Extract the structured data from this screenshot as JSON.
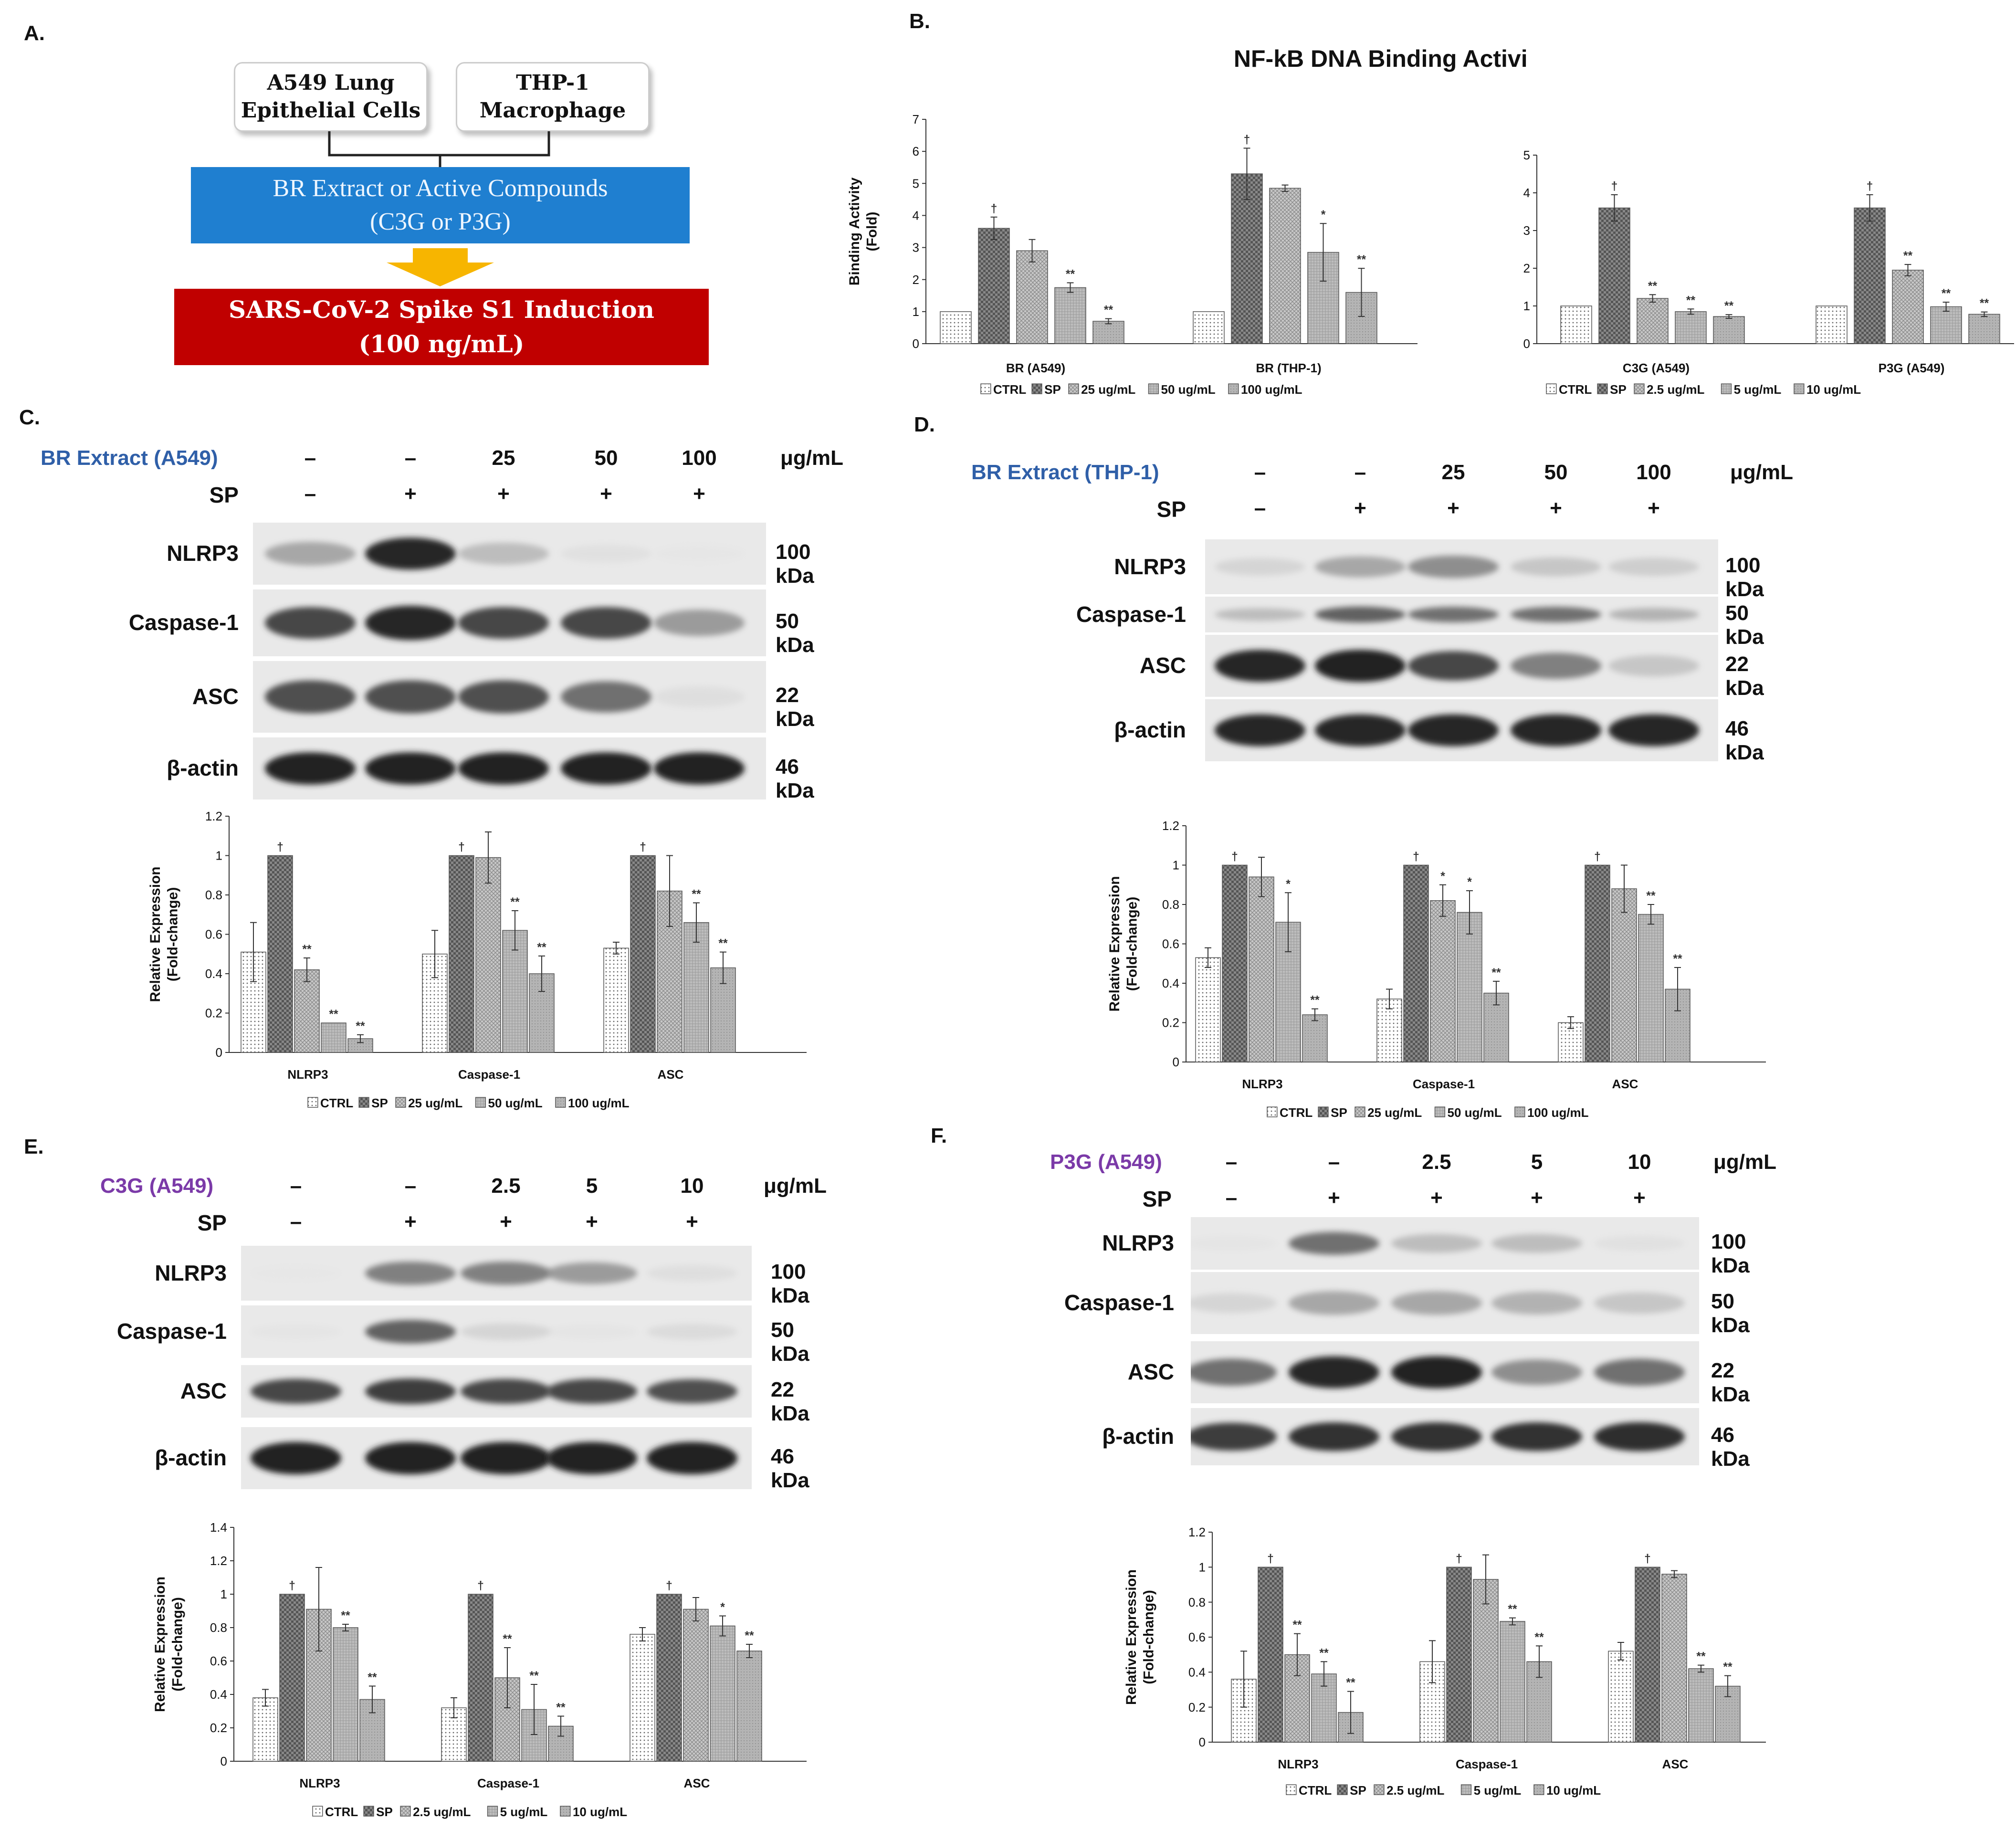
{
  "panel_labels": {
    "a": "A.",
    "b": "B.",
    "c": "C.",
    "d": "D.",
    "e": "E.",
    "f": "F."
  },
  "schematic": {
    "cell_a549": "A549 Lung\nEpithelial Cells",
    "cell_thp1": "THP-1\nMacrophage",
    "treatment": "BR Extract or Active Compounds\n(C3G or P3G)",
    "induction": "SARS-CoV-2 Spike S1 Induction\n(100 ng/mL)"
  },
  "colors": {
    "blue": "#1f7fd0",
    "red": "#c00000",
    "arrow": "#f7b500",
    "label_blue": "#2f5fa8",
    "label_purple": "#7b3aa8"
  },
  "chart_data": [
    {
      "id": "B1",
      "type": "bar",
      "title": "NF-kB DNA Binding Activity",
      "ylabel": "Binding Activity (Fold)",
      "ylim": [
        0,
        7
      ],
      "yticks": [
        "0",
        "1",
        "2",
        "3",
        "4",
        "5",
        "6",
        "7"
      ],
      "categories": [
        "BR (A549)",
        "BR (THP-1)"
      ],
      "series": [
        {
          "name": "CTRL",
          "values": [
            1,
            1
          ],
          "errors": [
            0,
            0
          ],
          "marks": [
            "",
            ""
          ]
        },
        {
          "name": "SP",
          "values": [
            3.6,
            5.3
          ],
          "errors": [
            0.35,
            0.8
          ],
          "marks": [
            "†",
            "†"
          ]
        },
        {
          "name": "25 ug/mL",
          "values": [
            2.9,
            4.85
          ],
          "errors": [
            0.35,
            0.1
          ],
          "marks": [
            "",
            ""
          ]
        },
        {
          "name": "50 ug/mL",
          "values": [
            1.75,
            2.85
          ],
          "errors": [
            0.15,
            0.9
          ],
          "marks": [
            "**",
            "*"
          ]
        },
        {
          "name": "100 ug/mL",
          "values": [
            0.7,
            1.6
          ],
          "errors": [
            0.08,
            0.75
          ],
          "marks": [
            "**",
            "**"
          ]
        }
      ],
      "legend": [
        "CTRL",
        "SP",
        "25 ug/mL",
        "50 ug/mL",
        "100 ug/mL"
      ]
    },
    {
      "id": "B2",
      "type": "bar",
      "title": "",
      "ylabel": "",
      "ylim": [
        0,
        5
      ],
      "yticks": [
        "0",
        "1",
        "2",
        "3",
        "4",
        "5"
      ],
      "categories": [
        "C3G (A549)",
        "P3G (A549)"
      ],
      "series": [
        {
          "name": "CTRL",
          "values": [
            1,
            1
          ],
          "errors": [
            0,
            0
          ],
          "marks": [
            "",
            ""
          ]
        },
        {
          "name": "SP",
          "values": [
            3.6,
            3.6
          ],
          "errors": [
            0.35,
            0.35
          ],
          "marks": [
            "†",
            "†"
          ]
        },
        {
          "name": "2.5 ug/mL",
          "values": [
            1.2,
            1.95
          ],
          "errors": [
            0.1,
            0.15
          ],
          "marks": [
            "**",
            "**"
          ]
        },
        {
          "name": "5 ug/mL",
          "values": [
            0.85,
            0.98
          ],
          "errors": [
            0.07,
            0.12
          ],
          "marks": [
            "**",
            "**"
          ]
        },
        {
          "name": "10 ug/mL",
          "values": [
            0.72,
            0.78
          ],
          "errors": [
            0.05,
            0.06
          ],
          "marks": [
            "**",
            "**"
          ]
        }
      ],
      "legend": [
        "CTRL",
        "SP",
        "2.5 ug/mL",
        "5 ug/mL",
        "10 ug/mL"
      ]
    },
    {
      "id": "C",
      "type": "bar",
      "title": "",
      "ylabel": "Relative Expression (Fold-change)",
      "ylim": [
        0,
        1.2
      ],
      "yticks": [
        "0",
        "0.2",
        "0.4",
        "0.6",
        "0.8",
        "1",
        "1.2"
      ],
      "categories": [
        "NLRP3",
        "Caspase-1",
        "ASC"
      ],
      "series": [
        {
          "name": "CTRL",
          "values": [
            0.51,
            0.5,
            0.53
          ],
          "errors": [
            0.15,
            0.12,
            0.03
          ],
          "marks": [
            "",
            "",
            ""
          ]
        },
        {
          "name": "SP",
          "values": [
            1,
            1,
            1
          ],
          "errors": [
            0,
            0,
            0
          ],
          "marks": [
            "†",
            "†",
            "†"
          ]
        },
        {
          "name": "25 ug/mL",
          "values": [
            0.42,
            0.99,
            0.82
          ],
          "errors": [
            0.06,
            0.13,
            0.18
          ],
          "marks": [
            "**",
            "",
            ""
          ]
        },
        {
          "name": "50 ug/mL",
          "values": [
            0.15,
            0.62,
            0.66
          ],
          "errors": [
            0,
            0.1,
            0.1
          ],
          "marks": [
            "**",
            "**",
            "**"
          ]
        },
        {
          "name": "100 ug/mL",
          "values": [
            0.07,
            0.4,
            0.43
          ],
          "errors": [
            0.02,
            0.09,
            0.08
          ],
          "marks": [
            "**",
            "**",
            "**"
          ]
        }
      ],
      "legend": [
        "CTRL",
        "SP",
        "25 ug/mL",
        "50 ug/mL",
        "100 ug/mL"
      ]
    },
    {
      "id": "D",
      "type": "bar",
      "title": "",
      "ylabel": "Relative Expression (Fold-change)",
      "ylim": [
        0,
        1.2
      ],
      "yticks": [
        "0",
        "0.2",
        "0.4",
        "0.6",
        "0.8",
        "1",
        "1.2"
      ],
      "categories": [
        "NLRP3",
        "Caspase-1",
        "ASC"
      ],
      "series": [
        {
          "name": "CTRL",
          "values": [
            0.53,
            0.32,
            0.2
          ],
          "errors": [
            0.05,
            0.05,
            0.03
          ],
          "marks": [
            "",
            "",
            ""
          ]
        },
        {
          "name": "SP",
          "values": [
            1,
            1,
            1
          ],
          "errors": [
            0,
            0,
            0
          ],
          "marks": [
            "†",
            "†",
            "†"
          ]
        },
        {
          "name": "25 ug/mL",
          "values": [
            0.94,
            0.82,
            0.88
          ],
          "errors": [
            0.1,
            0.08,
            0.12
          ],
          "marks": [
            "",
            "*",
            ""
          ]
        },
        {
          "name": "50 ug/mL",
          "values": [
            0.71,
            0.76,
            0.75
          ],
          "errors": [
            0.15,
            0.11,
            0.05
          ],
          "marks": [
            "*",
            "*",
            "**"
          ]
        },
        {
          "name": "100 ug/mL",
          "values": [
            0.24,
            0.35,
            0.37
          ],
          "errors": [
            0.03,
            0.06,
            0.11
          ],
          "marks": [
            "**",
            "**",
            "**"
          ]
        }
      ],
      "legend": [
        "CTRL",
        "SP",
        "25 ug/mL",
        "50 ug/mL",
        "100 ug/mL"
      ]
    },
    {
      "id": "E",
      "type": "bar",
      "title": "",
      "ylabel": "Relative Expression (Fold-change)",
      "ylim": [
        0,
        1.4
      ],
      "yticks": [
        "0",
        "0.2",
        "0.4",
        "0.6",
        "0.8",
        "1",
        "1.2",
        "1.4"
      ],
      "categories": [
        "NLRP3",
        "Caspase-1",
        "ASC"
      ],
      "series": [
        {
          "name": "CTRL",
          "values": [
            0.38,
            0.32,
            0.76
          ],
          "errors": [
            0.05,
            0.06,
            0.04
          ],
          "marks": [
            "",
            "",
            ""
          ]
        },
        {
          "name": "SP",
          "values": [
            1,
            1,
            1
          ],
          "errors": [
            0,
            0,
            0
          ],
          "marks": [
            "†",
            "†",
            "†"
          ]
        },
        {
          "name": "2.5 ug/mL",
          "values": [
            0.91,
            0.5,
            0.91
          ],
          "errors": [
            0.25,
            0.18,
            0.07
          ],
          "marks": [
            "",
            "**",
            ""
          ]
        },
        {
          "name": "5 ug/mL",
          "values": [
            0.8,
            0.31,
            0.81
          ],
          "errors": [
            0.02,
            0.15,
            0.06
          ],
          "marks": [
            "**",
            "**",
            "*"
          ]
        },
        {
          "name": "10 ug/mL",
          "values": [
            0.37,
            0.21,
            0.66
          ],
          "errors": [
            0.08,
            0.06,
            0.04
          ],
          "marks": [
            "**",
            "**",
            "**"
          ]
        }
      ],
      "legend": [
        "CTRL",
        "SP",
        "2.5 ug/mL",
        "5 ug/mL",
        "10 ug/mL"
      ]
    },
    {
      "id": "F",
      "type": "bar",
      "title": "",
      "ylabel": "Relative Expression (Fold-change)",
      "ylim": [
        0,
        1.2
      ],
      "yticks": [
        "0",
        "0.2",
        "0.4",
        "0.6",
        "0.8",
        "1",
        "1.2"
      ],
      "categories": [
        "NLRP3",
        "Caspase-1",
        "ASC"
      ],
      "series": [
        {
          "name": "CTRL",
          "values": [
            0.36,
            0.46,
            0.52
          ],
          "errors": [
            0.16,
            0.12,
            0.05
          ],
          "marks": [
            "",
            "",
            ""
          ]
        },
        {
          "name": "SP",
          "values": [
            1,
            1,
            1
          ],
          "errors": [
            0,
            0,
            0
          ],
          "marks": [
            "†",
            "†",
            "†"
          ]
        },
        {
          "name": "2.5 ug/mL",
          "values": [
            0.5,
            0.93,
            0.96
          ],
          "errors": [
            0.12,
            0.14,
            0.02
          ],
          "marks": [
            "**",
            "",
            ""
          ]
        },
        {
          "name": "5 ug/mL",
          "values": [
            0.39,
            0.69,
            0.42
          ],
          "errors": [
            0.07,
            0.02,
            0.02
          ],
          "marks": [
            "**",
            "**",
            "**"
          ]
        },
        {
          "name": "10 ug/mL",
          "values": [
            0.17,
            0.46,
            0.32
          ],
          "errors": [
            0.12,
            0.09,
            0.06
          ],
          "marks": [
            "**",
            "**",
            "**"
          ]
        }
      ],
      "legend": [
        "CTRL",
        "SP",
        "2.5 ug/mL",
        "5 ug/mL",
        "10 ug/mL"
      ]
    }
  ],
  "blots": {
    "C": {
      "treatment": "BR Extract (A549)",
      "doses": [
        "–",
        "–",
        "25",
        "50",
        "100"
      ],
      "unit": "μg/mL",
      "sp_label": "SP",
      "sp": [
        "–",
        "+",
        "+",
        "+",
        "+"
      ],
      "rows": [
        {
          "label": "NLRP3",
          "kda": "100 kDa",
          "intensity": [
            0.45,
            0.95,
            0.35,
            0.1,
            0.03
          ]
        },
        {
          "label": "Caspase-1",
          "kda": "50 kDa",
          "intensity": [
            0.8,
            0.95,
            0.8,
            0.8,
            0.5
          ]
        },
        {
          "label": "ASC",
          "kda": "22 kDa",
          "intensity": [
            0.75,
            0.75,
            0.75,
            0.65,
            0.12
          ]
        },
        {
          "label": "β-actin",
          "kda": "46 kDa",
          "intensity": [
            0.97,
            0.97,
            0.97,
            0.97,
            0.97
          ]
        }
      ]
    },
    "D": {
      "treatment": "BR Extract (THP-1)",
      "doses": [
        "–",
        "–",
        "25",
        "50",
        "100"
      ],
      "unit": "μg/mL",
      "sp_label": "SP",
      "sp": [
        "–",
        "+",
        "+",
        "+",
        "+"
      ],
      "rows": [
        {
          "label": "NLRP3",
          "kda": "100 kDa",
          "intensity": [
            0.2,
            0.45,
            0.55,
            0.3,
            0.25
          ]
        },
        {
          "label": "Caspase-1",
          "kda": "50 kDa",
          "intensity": [
            0.35,
            0.7,
            0.65,
            0.65,
            0.4
          ]
        },
        {
          "label": "ASC",
          "kda": "22 kDa",
          "intensity": [
            0.95,
            0.97,
            0.8,
            0.6,
            0.3
          ]
        },
        {
          "label": "β-actin",
          "kda": "46 kDa",
          "intensity": [
            0.95,
            0.95,
            0.95,
            0.95,
            0.95
          ]
        }
      ]
    },
    "E": {
      "treatment": "C3G (A549)",
      "doses": [
        "–",
        "–",
        "2.5",
        "5",
        "10"
      ],
      "unit": "μg/mL",
      "sp_label": "SP",
      "sp": [
        "–",
        "+",
        "+",
        "+",
        "+"
      ],
      "rows": [
        {
          "label": "NLRP3",
          "kda": "100 kDa",
          "intensity": [
            0.02,
            0.6,
            0.6,
            0.5,
            0.12
          ]
        },
        {
          "label": "Caspase-1",
          "kda": "50 kDa",
          "intensity": [
            0.05,
            0.7,
            0.2,
            0.05,
            0.15
          ]
        },
        {
          "label": "ASC",
          "kda": "22 kDa",
          "intensity": [
            0.8,
            0.85,
            0.8,
            0.8,
            0.75
          ]
        },
        {
          "label": "β-actin",
          "kda": "46 kDa",
          "intensity": [
            0.98,
            0.98,
            0.98,
            0.98,
            0.98
          ]
        }
      ]
    },
    "F": {
      "treatment": "P3G (A549)",
      "doses": [
        "–",
        "–",
        "2.5",
        "5",
        "10"
      ],
      "unit": "μg/mL",
      "sp_label": "SP",
      "sp": [
        "–",
        "+",
        "+",
        "+",
        "+"
      ],
      "rows": [
        {
          "label": "NLRP3",
          "kda": "100 kDa",
          "intensity": [
            0.05,
            0.65,
            0.35,
            0.35,
            0.1
          ]
        },
        {
          "label": "Caspase-1",
          "kda": "50 kDa",
          "intensity": [
            0.2,
            0.45,
            0.45,
            0.4,
            0.3
          ]
        },
        {
          "label": "ASC",
          "kda": "22 kDa",
          "intensity": [
            0.65,
            0.95,
            0.97,
            0.55,
            0.65
          ]
        },
        {
          "label": "β-actin",
          "kda": "46 kDa",
          "intensity": [
            0.85,
            0.9,
            0.9,
            0.9,
            0.92
          ]
        }
      ]
    }
  }
}
